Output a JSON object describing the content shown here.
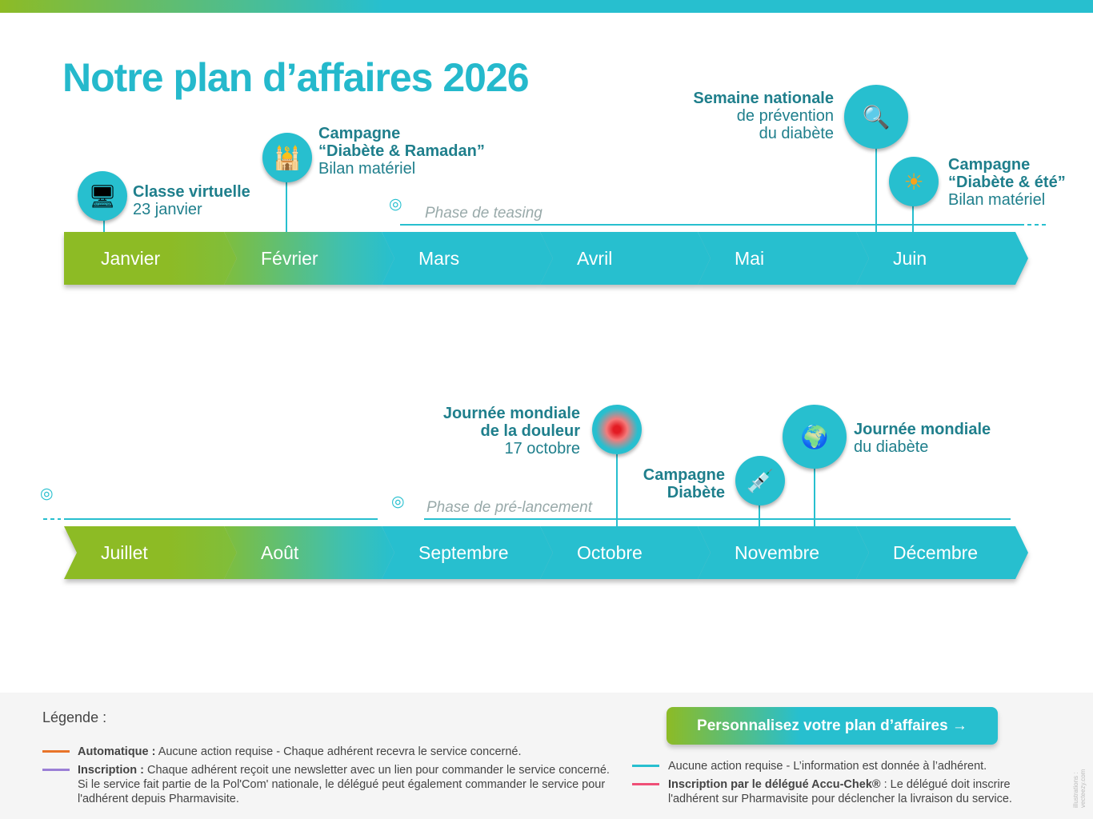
{
  "title": "Notre plan d’affaires 2026",
  "colors": {
    "green": "#8dbb25",
    "teal": "#27bfcf",
    "title": "#25b9cc",
    "orange": "#e8742a",
    "purple": "#9b7fd6",
    "pink": "#ef4f77"
  },
  "months_row1": [
    "Janvier",
    "Février",
    "Mars",
    "Avril",
    "Mai",
    "Juin"
  ],
  "months_row2": [
    "Juillet",
    "Août",
    "Septembre",
    "Octobre",
    "Novembre",
    "Décembre"
  ],
  "events": {
    "classe": {
      "title": "Classe virtuelle",
      "sub": "23 janvier",
      "icon": "video-call-icon"
    },
    "ramadan": {
      "title1": "Campagne",
      "title2": "“Diabète & Ramadan”",
      "sub": "Bilan matériel",
      "icon": "mosque-icon"
    },
    "semaine": {
      "title": "Semaine nationale",
      "sub1": "de prévention",
      "sub2": "du diabète",
      "icon": "magnifier-document-icon"
    },
    "ete": {
      "title1": "Campagne",
      "title2": "“Diabète & été”",
      "sub": "Bilan matériel",
      "icon": "sun-icon"
    },
    "douleur": {
      "title1": "Journée mondiale",
      "title2": "de la douleur",
      "sub": "17 octobre",
      "icon": "pain-target-icon"
    },
    "campagne": {
      "title1": "Campagne",
      "title2": "Diabète",
      "icon": "glucose-meter-icon"
    },
    "mondiale": {
      "title": "Journée mondiale",
      "sub": "du diabète",
      "icon": "globe-icon"
    }
  },
  "phases": {
    "teasing": "Phase de teasing",
    "prelancement": "Phase de pré-lancement"
  },
  "legend": {
    "title": "Légende :",
    "auto_label": "Automatique :",
    "auto_text": " Aucune action requise - Chaque adhérent recevra le service concerné.",
    "insc_label": "Inscription :",
    "insc_text": " Chaque adhérent reçoit une newsletter avec un lien pour commander le service concerné.",
    "insc_text2": "Si le service fait partie de la Pol'Com' nationale, le délégué peut également commander le service pour",
    "insc_text3": "l'adhérent depuis Pharmavisite.",
    "info_text": "Aucune action requise - L’information est donnée à l’adhérent.",
    "deleg_label": "Inscription par le délégué Accu-Chek®",
    "deleg_text": " : Le délégué doit inscrire",
    "deleg_text2": "l'adhérent sur Pharmavisite pour déclencher la livraison du service."
  },
  "cta": "Personnalisez votre plan d’affaires →",
  "credit": "illustrations : vecteezy.com"
}
